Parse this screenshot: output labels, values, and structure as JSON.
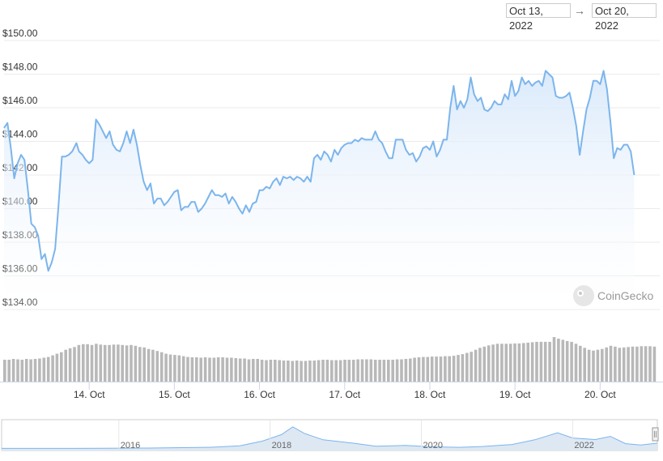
{
  "range": {
    "from": "Oct 13, 2022",
    "arrow": "→",
    "to": "Oct 20, 2022"
  },
  "watermark": "CoinGecko",
  "colors": {
    "line": "#7cb5ec",
    "fill_top": "#d6e7fa",
    "volume": "#b8b8b8",
    "grid": "#ebebeb",
    "nav": "#dde8f3"
  },
  "chart_data": {
    "type": "area",
    "y_ticks": [
      "$150.00",
      "$148.00",
      "$146.00",
      "$144.00",
      "$142.00",
      "$140.00",
      "$138.00",
      "$136.00",
      "$134.00"
    ],
    "y_tick_values": [
      150,
      148,
      146,
      144,
      142,
      140,
      138,
      136,
      134
    ],
    "ylim": [
      134,
      150
    ],
    "x_ticks": [
      "14. Oct",
      "15. Oct",
      "16. Oct",
      "17. Oct",
      "18. Oct",
      "19. Oct",
      "20. Oct"
    ],
    "x_tick_values": [
      1,
      2,
      3,
      4,
      5,
      6,
      7
    ],
    "xlim": [
      0,
      7.7
    ],
    "price": [
      [
        0.0,
        144.8
      ],
      [
        0.04,
        145.1
      ],
      [
        0.08,
        143.6
      ],
      [
        0.12,
        141.8
      ],
      [
        0.16,
        142.7
      ],
      [
        0.2,
        143.2
      ],
      [
        0.24,
        142.9
      ],
      [
        0.28,
        141.1
      ],
      [
        0.32,
        139.1
      ],
      [
        0.36,
        138.9
      ],
      [
        0.4,
        138.4
      ],
      [
        0.44,
        137.0
      ],
      [
        0.48,
        137.3
      ],
      [
        0.52,
        136.3
      ],
      [
        0.56,
        136.8
      ],
      [
        0.6,
        137.6
      ],
      [
        0.64,
        140.2
      ],
      [
        0.68,
        143.1
      ],
      [
        0.72,
        143.1
      ],
      [
        0.76,
        143.2
      ],
      [
        0.8,
        143.4
      ],
      [
        0.85,
        143.9
      ],
      [
        0.88,
        143.4
      ],
      [
        0.92,
        143.2
      ],
      [
        0.96,
        142.9
      ],
      [
        1.0,
        142.7
      ],
      [
        1.04,
        142.9
      ],
      [
        1.08,
        145.3
      ],
      [
        1.12,
        145.0
      ],
      [
        1.16,
        144.6
      ],
      [
        1.2,
        144.2
      ],
      [
        1.24,
        144.6
      ],
      [
        1.28,
        143.8
      ],
      [
        1.32,
        143.5
      ],
      [
        1.36,
        143.4
      ],
      [
        1.4,
        143.9
      ],
      [
        1.44,
        144.6
      ],
      [
        1.48,
        143.9
      ],
      [
        1.52,
        144.7
      ],
      [
        1.56,
        143.8
      ],
      [
        1.6,
        142.6
      ],
      [
        1.64,
        141.6
      ],
      [
        1.68,
        141.1
      ],
      [
        1.72,
        141.5
      ],
      [
        1.76,
        140.3
      ],
      [
        1.8,
        140.6
      ],
      [
        1.84,
        140.6
      ],
      [
        1.88,
        140.2
      ],
      [
        1.92,
        140.4
      ],
      [
        1.96,
        140.7
      ],
      [
        2.0,
        141.0
      ],
      [
        2.04,
        141.1
      ],
      [
        2.08,
        139.9
      ],
      [
        2.12,
        140.1
      ],
      [
        2.16,
        140.1
      ],
      [
        2.2,
        140.4
      ],
      [
        2.24,
        140.4
      ],
      [
        2.28,
        139.8
      ],
      [
        2.32,
        140.0
      ],
      [
        2.36,
        140.3
      ],
      [
        2.4,
        140.7
      ],
      [
        2.44,
        141.1
      ],
      [
        2.48,
        140.8
      ],
      [
        2.52,
        140.8
      ],
      [
        2.56,
        140.7
      ],
      [
        2.6,
        140.9
      ],
      [
        2.64,
        140.3
      ],
      [
        2.68,
        140.7
      ],
      [
        2.72,
        140.4
      ],
      [
        2.76,
        140.0
      ],
      [
        2.8,
        139.7
      ],
      [
        2.84,
        140.2
      ],
      [
        2.88,
        139.8
      ],
      [
        2.92,
        140.3
      ],
      [
        2.96,
        140.4
      ],
      [
        3.0,
        141.1
      ],
      [
        3.04,
        141.1
      ],
      [
        3.08,
        141.3
      ],
      [
        3.12,
        141.2
      ],
      [
        3.16,
        141.6
      ],
      [
        3.2,
        141.8
      ],
      [
        3.24,
        141.4
      ],
      [
        3.28,
        141.9
      ],
      [
        3.32,
        141.8
      ],
      [
        3.36,
        141.9
      ],
      [
        3.4,
        141.7
      ],
      [
        3.44,
        141.9
      ],
      [
        3.48,
        141.8
      ],
      [
        3.52,
        141.6
      ],
      [
        3.56,
        141.9
      ],
      [
        3.6,
        141.6
      ],
      [
        3.64,
        143.0
      ],
      [
        3.68,
        143.2
      ],
      [
        3.72,
        142.9
      ],
      [
        3.76,
        143.4
      ],
      [
        3.8,
        143.2
      ],
      [
        3.84,
        142.8
      ],
      [
        3.88,
        143.5
      ],
      [
        3.92,
        143.2
      ],
      [
        3.96,
        143.6
      ],
      [
        4.0,
        143.8
      ],
      [
        4.04,
        143.9
      ],
      [
        4.08,
        143.9
      ],
      [
        4.12,
        144.1
      ],
      [
        4.16,
        144.0
      ],
      [
        4.2,
        144.2
      ],
      [
        4.24,
        144.1
      ],
      [
        4.28,
        144.1
      ],
      [
        4.32,
        144.1
      ],
      [
        4.36,
        144.6
      ],
      [
        4.4,
        144.1
      ],
      [
        4.44,
        143.9
      ],
      [
        4.48,
        143.4
      ],
      [
        4.52,
        143.0
      ],
      [
        4.56,
        143.0
      ],
      [
        4.6,
        144.1
      ],
      [
        4.64,
        144.1
      ],
      [
        4.68,
        144.1
      ],
      [
        4.72,
        143.5
      ],
      [
        4.76,
        143.2
      ],
      [
        4.8,
        143.3
      ],
      [
        4.84,
        142.8
      ],
      [
        4.88,
        143.1
      ],
      [
        4.92,
        143.6
      ],
      [
        4.96,
        143.7
      ],
      [
        5.0,
        143.5
      ],
      [
        5.04,
        144.0
      ],
      [
        5.08,
        143.1
      ],
      [
        5.12,
        143.5
      ],
      [
        5.16,
        144.1
      ],
      [
        5.2,
        144.1
      ],
      [
        5.24,
        146.0
      ],
      [
        5.28,
        147.3
      ],
      [
        5.32,
        145.9
      ],
      [
        5.36,
        146.4
      ],
      [
        5.4,
        146.0
      ],
      [
        5.44,
        146.5
      ],
      [
        5.48,
        147.8
      ],
      [
        5.52,
        146.8
      ],
      [
        5.56,
        146.4
      ],
      [
        5.6,
        146.6
      ],
      [
        5.64,
        145.9
      ],
      [
        5.68,
        145.8
      ],
      [
        5.72,
        146.0
      ],
      [
        5.76,
        146.4
      ],
      [
        5.8,
        146.2
      ],
      [
        5.84,
        146.2
      ],
      [
        5.88,
        146.8
      ],
      [
        5.92,
        146.5
      ],
      [
        5.96,
        147.6
      ],
      [
        6.0,
        146.7
      ],
      [
        6.04,
        147.0
      ],
      [
        6.08,
        147.8
      ],
      [
        6.12,
        147.4
      ],
      [
        6.16,
        147.6
      ],
      [
        6.2,
        147.3
      ],
      [
        6.24,
        147.5
      ],
      [
        6.28,
        147.6
      ],
      [
        6.32,
        147.3
      ],
      [
        6.36,
        148.2
      ],
      [
        6.4,
        148.0
      ],
      [
        6.44,
        147.8
      ],
      [
        6.48,
        146.7
      ],
      [
        6.52,
        146.6
      ],
      [
        6.56,
        146.6
      ],
      [
        6.6,
        146.7
      ],
      [
        6.64,
        146.9
      ],
      [
        6.68,
        146.0
      ],
      [
        6.72,
        144.9
      ],
      [
        6.76,
        143.2
      ],
      [
        6.8,
        144.6
      ],
      [
        6.84,
        145.9
      ],
      [
        6.88,
        146.6
      ],
      [
        6.92,
        147.6
      ],
      [
        6.96,
        147.6
      ],
      [
        7.0,
        147.4
      ],
      [
        7.04,
        148.2
      ],
      [
        7.08,
        147.1
      ],
      [
        7.12,
        145.2
      ],
      [
        7.16,
        143.0
      ],
      [
        7.2,
        143.6
      ],
      [
        7.24,
        143.5
      ],
      [
        7.28,
        143.8
      ],
      [
        7.32,
        143.8
      ],
      [
        7.36,
        143.4
      ],
      [
        7.4,
        142.0
      ]
    ],
    "volume_relative": [
      0.55,
      0.55,
      0.57,
      0.56,
      0.55,
      0.57,
      0.56,
      0.57,
      0.58,
      0.6,
      0.62,
      0.66,
      0.7,
      0.74,
      0.8,
      0.84,
      0.87,
      0.92,
      0.94,
      0.94,
      0.92,
      0.95,
      0.93,
      0.92,
      0.92,
      0.93,
      0.93,
      0.92,
      0.91,
      0.92,
      0.9,
      0.87,
      0.86,
      0.82,
      0.8,
      0.77,
      0.74,
      0.7,
      0.68,
      0.67,
      0.66,
      0.64,
      0.62,
      0.61,
      0.61,
      0.6,
      0.61,
      0.6,
      0.6,
      0.61,
      0.61,
      0.6,
      0.6,
      0.59,
      0.58,
      0.58,
      0.56,
      0.57,
      0.57,
      0.55,
      0.54,
      0.55,
      0.55,
      0.54,
      0.53,
      0.53,
      0.52,
      0.53,
      0.52,
      0.52,
      0.53,
      0.53,
      0.54,
      0.55,
      0.55,
      0.54,
      0.54,
      0.54,
      0.55,
      0.55,
      0.55,
      0.56,
      0.56,
      0.56,
      0.56,
      0.55,
      0.55,
      0.55,
      0.55,
      0.55,
      0.56,
      0.56,
      0.57,
      0.58,
      0.6,
      0.61,
      0.62,
      0.62,
      0.63,
      0.63,
      0.63,
      0.64,
      0.64,
      0.65,
      0.67,
      0.69,
      0.72,
      0.75,
      0.8,
      0.85,
      0.88,
      0.91,
      0.93,
      0.95,
      0.95,
      0.95,
      0.95,
      0.96,
      0.96,
      0.97,
      0.98,
      0.99,
      1.0,
      1.0,
      1.0,
      1.0,
      1.12,
      1.08,
      1.05,
      1.02,
      1.0,
      0.95,
      0.9,
      0.85,
      0.8,
      0.78,
      0.8,
      0.82,
      0.86,
      0.9,
      0.88,
      0.85,
      0.86,
      0.87,
      0.88,
      0.88,
      0.89,
      0.89,
      0.89,
      0.88
    ],
    "navigator": {
      "x_ticks": [
        "2016",
        "2018",
        "2020",
        "2022"
      ],
      "x_tick_values": [
        2015.6,
        2017.6,
        2019.6,
        2021.6
      ],
      "xlim": [
        2014.05,
        2022.72
      ]
    }
  }
}
